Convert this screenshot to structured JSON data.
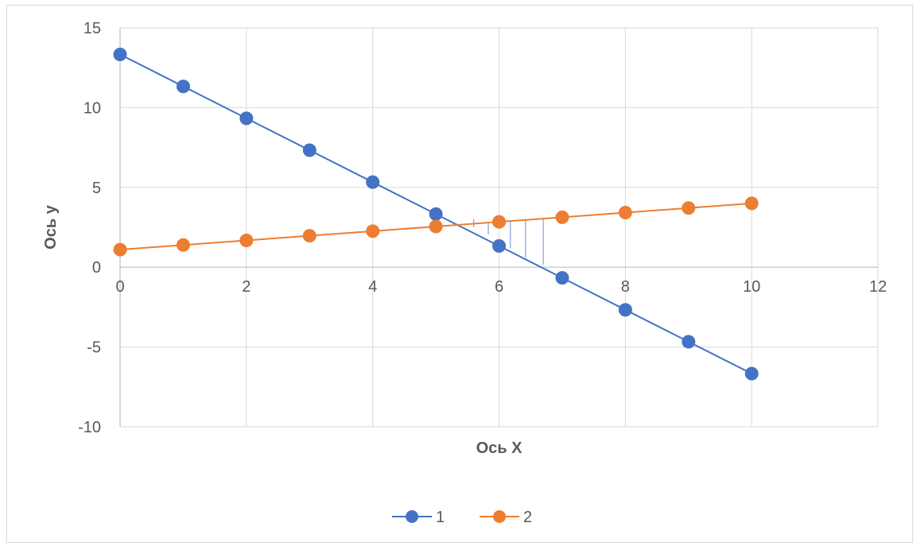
{
  "chart_data": {
    "type": "scatter",
    "xlabel": "Ось X",
    "ylabel": "Ось y",
    "xlim": [
      0,
      12
    ],
    "ylim": [
      -10,
      15
    ],
    "x_ticks": [
      0,
      2,
      4,
      6,
      8,
      10,
      12
    ],
    "y_ticks": [
      -10,
      -5,
      0,
      5,
      10,
      15
    ],
    "grid": true,
    "legend_position": "bottom",
    "series": [
      {
        "name": "1",
        "color": "#4472c4",
        "x": [
          0,
          1,
          2,
          3,
          4,
          5,
          6,
          7,
          8,
          9,
          10
        ],
        "y": [
          13.33,
          11.33,
          9.33,
          7.33,
          5.33,
          3.33,
          1.33,
          -0.67,
          -2.67,
          -4.67,
          -6.67
        ]
      },
      {
        "name": "2",
        "color": "#ed7d31",
        "x": [
          0,
          1,
          2,
          3,
          4,
          5,
          6,
          7,
          8,
          9,
          10
        ],
        "y": [
          1.1,
          1.39,
          1.68,
          1.97,
          2.26,
          2.55,
          2.84,
          3.13,
          3.42,
          3.71,
          4.0
        ]
      }
    ],
    "hatch_color": "#4472c4",
    "hatch_lines": [
      {
        "x": 5.6,
        "y1": 2.5,
        "y2": 3.0
      },
      {
        "x": 5.83,
        "y1": 2.05,
        "y2": 2.75
      },
      {
        "x": 6.18,
        "y1": 1.2,
        "y2": 2.95
      },
      {
        "x": 6.42,
        "y1": 0.6,
        "y2": 3.0
      },
      {
        "x": 6.7,
        "y1": 0.15,
        "y2": 3.0
      }
    ]
  }
}
